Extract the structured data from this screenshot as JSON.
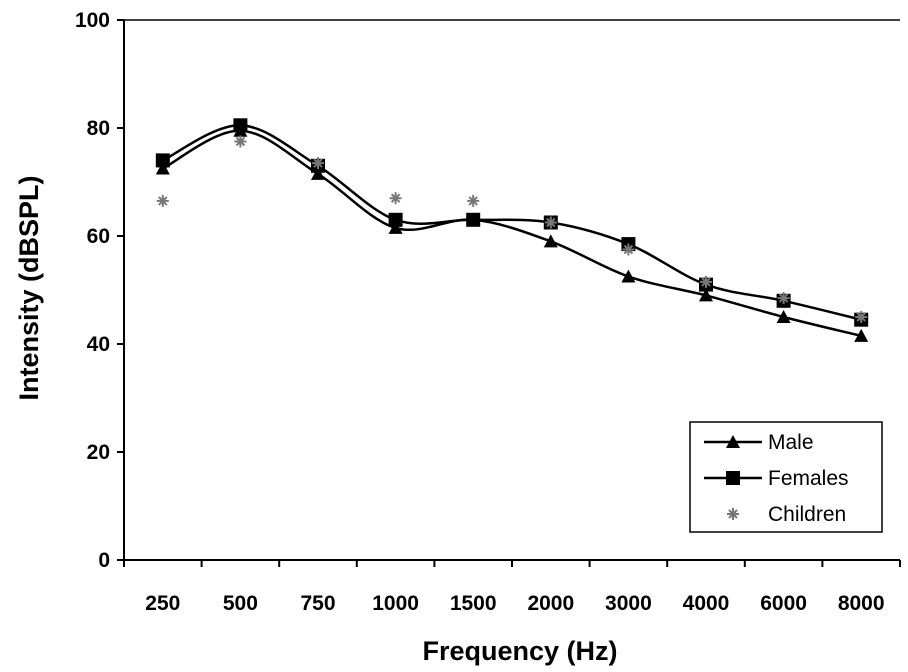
{
  "chart_data": {
    "type": "line",
    "title": "",
    "xlabel": "Frequency (Hz)",
    "ylabel": "Intensity (dBSPL)",
    "categories": [
      "250",
      "500",
      "750",
      "1000",
      "1500",
      "2000",
      "3000",
      "4000",
      "6000",
      "8000"
    ],
    "ylim": [
      0,
      100
    ],
    "yticks": [
      "0",
      "20",
      "40",
      "60",
      "80",
      "100"
    ],
    "grid": false,
    "legend_position": "bottom-right",
    "series": [
      {
        "name": "Male",
        "marker": "triangle",
        "line": true,
        "color": "#000000",
        "values": [
          72.5,
          79.5,
          71.5,
          61.5,
          63,
          59,
          52.5,
          49,
          45,
          41.5
        ]
      },
      {
        "name": "Females",
        "marker": "square",
        "line": true,
        "color": "#000000",
        "values": [
          74,
          80.5,
          73,
          63,
          63,
          62.5,
          58.5,
          51,
          48,
          44.5
        ]
      },
      {
        "name": "Children",
        "marker": "star",
        "line": false,
        "color": "#777777",
        "values": [
          66.5,
          77.5,
          73.5,
          67,
          66.5,
          62.5,
          57.5,
          51.5,
          48.5,
          45
        ]
      }
    ]
  }
}
